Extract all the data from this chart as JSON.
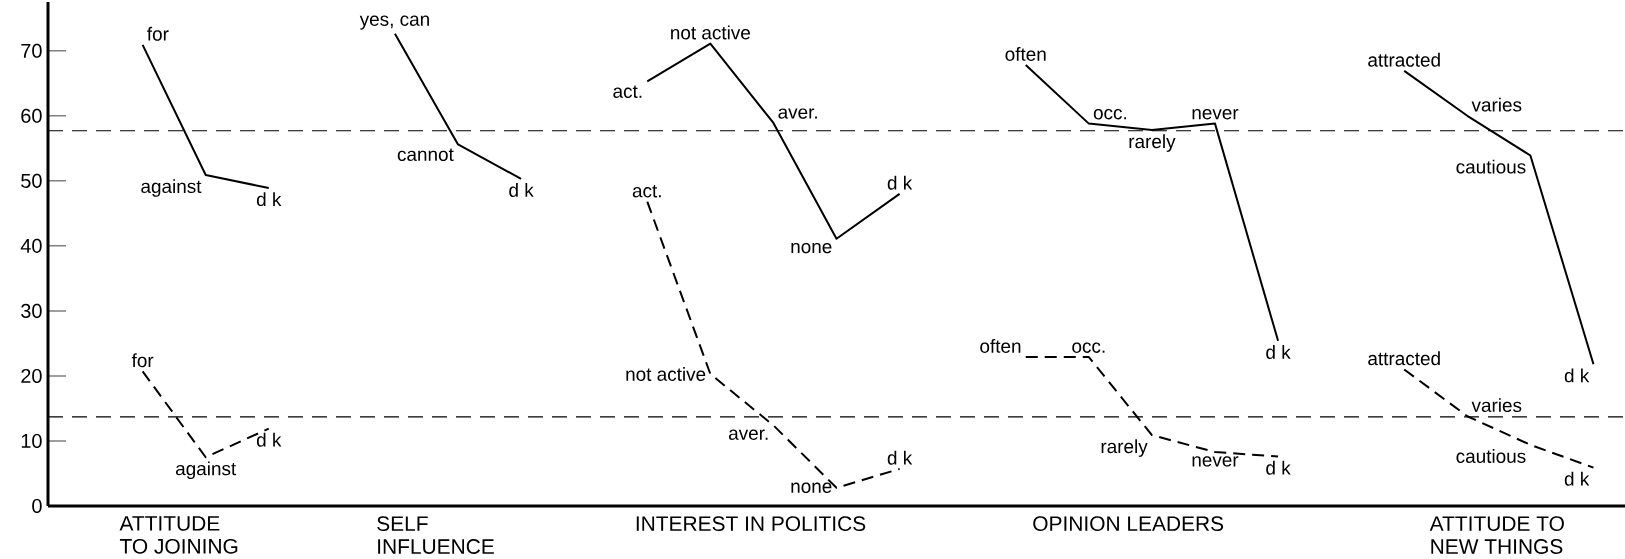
{
  "chart_data": {
    "type": "line",
    "categories": [
      null,
      null,
      null,
      null,
      null,
      null,
      null,
      null,
      null,
      null,
      null,
      null,
      null,
      null,
      null,
      null,
      null,
      null,
      null,
      null,
      null,
      null,
      null,
      null,
      null
    ],
    "ylim": [
      0,
      77.5
    ],
    "yticks": [
      0,
      10,
      20,
      30,
      40,
      50,
      60,
      70
    ],
    "grid": false,
    "marker": "none",
    "series": [
      {
        "color": "#000000",
        "line_style": "solid",
        "values": [
          null,
          70.9,
          50.9,
          48.9,
          null,
          72.6,
          55.6,
          50.3,
          null,
          65.3,
          71.1,
          58.9,
          41.1,
          48,
          null,
          67.8,
          58.8,
          57.8,
          58.8,
          25.4,
          null,
          66.9,
          60,
          53.9,
          21.8
        ],
        "value_labels": [
          null,
          "for",
          "against",
          "d k",
          null,
          "yes, can",
          "cannot",
          "d k",
          null,
          "act.",
          "not active",
          "aver.",
          "none",
          "d k",
          null,
          "often",
          "occ.",
          "rarely",
          "never",
          "d k",
          null,
          "attracted",
          "varies",
          "cautious",
          "d k"
        ]
      },
      {
        "color": "#000000",
        "line_style": "dashed",
        "values": [
          null,
          20.7,
          7.5,
          11.9,
          null,
          null,
          null,
          null,
          null,
          46.8,
          20.3,
          12.4,
          2.8,
          5.7,
          null,
          22.9,
          22.9,
          10.9,
          8.3,
          7.6,
          null,
          21,
          13.8,
          9.4,
          5.9
        ],
        "value_labels": [
          null,
          "for",
          "against",
          "d k",
          null,
          null,
          null,
          null,
          null,
          "act.",
          "not active",
          "aver.",
          "none",
          "d k",
          null,
          "often",
          "occ.",
          "rarely",
          "never",
          "d k",
          null,
          "attracted",
          "varies",
          "cautious",
          "d k"
        ]
      }
    ],
    "ref_lines": [
      {
        "axis": "y",
        "value": 57.7,
        "color": "#000000",
        "line_style": "dashed"
      },
      {
        "axis": "y",
        "value": 13.7,
        "color": "#000000",
        "line_style": "dashed"
      }
    ],
    "annotations": [
      "ATTITUDE TO JOINING",
      "SELF INFLUENCE",
      "INTEREST IN POLITICS",
      "OPINION LEADERS",
      "ATTITUDE TO NEW THINGS"
    ]
  }
}
